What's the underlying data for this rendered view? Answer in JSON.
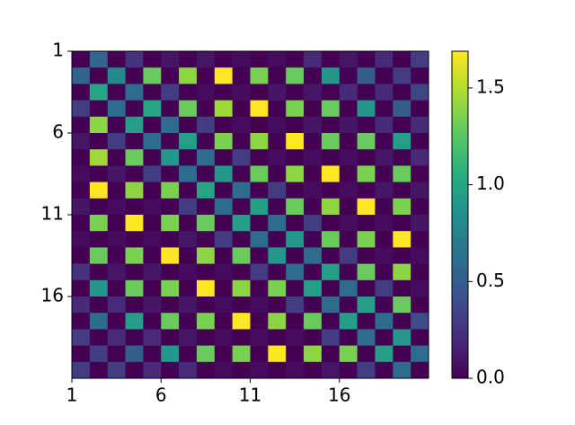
{
  "chart_data": {
    "type": "heatmap",
    "colormap": "viridis",
    "xlim": [
      1,
      21
    ],
    "ylim": [
      21,
      1
    ],
    "xticks": [
      1,
      6,
      11,
      16
    ],
    "yticks": [
      1,
      6,
      11,
      16
    ],
    "clim": [
      0,
      1.69
    ],
    "cticks": [
      {
        "value": 0,
        "label": "0.0"
      },
      {
        "value": 0.5,
        "label": "0.5"
      },
      {
        "value": 1,
        "label": "1.0"
      },
      {
        "value": 1.5,
        "label": "1.5"
      }
    ],
    "z": [
      [
        0,
        0.55,
        0,
        0.25,
        0,
        0.1,
        0,
        0.1,
        0,
        0.05,
        0,
        0.05,
        0,
        0.2,
        0,
        0.1,
        0,
        0.2,
        0,
        0.3
      ],
      [
        0.55,
        0,
        0.8,
        0,
        1.3,
        0,
        1.4,
        0,
        1.69,
        0,
        1.35,
        0,
        1.3,
        0,
        0.9,
        0,
        0.5,
        0,
        0.3,
        0
      ],
      [
        0,
        1.0,
        0,
        0.6,
        0,
        0.3,
        0,
        0.05,
        0,
        0.05,
        0,
        0.1,
        0,
        0.1,
        0,
        0.2,
        0,
        0.2,
        0,
        0.35
      ],
      [
        0.3,
        0,
        0.6,
        0,
        1.0,
        0,
        1.3,
        0,
        1.45,
        0,
        1.69,
        0,
        1.35,
        0,
        1.3,
        0,
        0.9,
        0,
        0.5,
        0
      ],
      [
        0,
        1.4,
        0,
        0.95,
        0,
        0.6,
        0,
        0.3,
        0,
        0.05,
        0,
        0.05,
        0,
        0.1,
        0,
        0.1,
        0,
        0.2,
        0,
        0.2
      ],
      [
        0.1,
        0,
        0.3,
        0,
        0.6,
        0,
        0.95,
        0,
        1.35,
        0,
        1.4,
        0,
        1.69,
        0,
        1.3,
        0,
        1.3,
        0,
        0.95,
        0
      ],
      [
        0,
        1.45,
        0,
        1.3,
        0,
        0.9,
        0,
        0.6,
        0,
        0.3,
        0,
        0.05,
        0,
        0.05,
        0,
        0.05,
        0,
        0.1,
        0,
        0.2
      ],
      [
        0.05,
        0,
        0.1,
        0,
        0.3,
        0,
        0.6,
        0,
        0.9,
        0,
        1.3,
        0,
        1.4,
        0,
        1.69,
        0,
        1.35,
        0,
        1.3,
        0
      ],
      [
        0,
        1.69,
        0,
        1.4,
        0,
        1.35,
        0,
        1.0,
        0,
        0.6,
        0,
        0.3,
        0,
        0.05,
        0,
        0.05,
        0,
        0.1,
        0,
        0.1
      ],
      [
        0.1,
        0,
        0.05,
        0,
        0.05,
        0,
        0.3,
        0,
        0.6,
        0,
        0.95,
        0,
        1.3,
        0,
        1.4,
        0,
        1.69,
        0,
        1.35,
        0
      ],
      [
        0,
        1.35,
        0,
        1.69,
        0,
        1.35,
        0,
        1.3,
        0,
        0.95,
        0,
        0.6,
        0,
        0.3,
        0,
        0.05,
        0,
        0.05,
        0,
        0.1
      ],
      [
        0.05,
        0,
        0.05,
        0,
        0.05,
        0,
        0.1,
        0,
        0.3,
        0,
        0.6,
        0,
        0.9,
        0,
        1.3,
        0,
        1.35,
        0,
        1.69,
        0
      ],
      [
        0,
        1.3,
        0,
        1.35,
        0,
        1.69,
        0,
        1.4,
        0,
        1.3,
        0,
        0.9,
        0,
        0.6,
        0,
        0.3,
        0,
        0.05,
        0,
        0.05
      ],
      [
        0.25,
        0,
        0.1,
        0,
        0.1,
        0,
        0.05,
        0,
        0.05,
        0,
        0.3,
        0,
        0.6,
        0,
        0.95,
        0,
        1.3,
        0,
        1.4,
        0
      ],
      [
        0,
        0.9,
        0,
        1.3,
        0,
        1.35,
        0,
        1.69,
        0,
        1.4,
        0,
        1.35,
        0,
        0.95,
        0,
        0.6,
        0,
        0.3,
        0,
        0.05
      ],
      [
        0.2,
        0,
        0.2,
        0,
        0.1,
        0,
        0.1,
        0,
        0.05,
        0,
        0.05,
        0,
        0.3,
        0,
        0.6,
        0,
        0.95,
        0,
        1.3,
        0
      ],
      [
        0,
        0.6,
        0,
        0.95,
        0,
        1.3,
        0,
        1.35,
        0,
        1.69,
        0,
        1.4,
        0,
        1.3,
        0,
        0.95,
        0,
        0.6,
        0,
        0.4
      ],
      [
        0.3,
        0,
        0.2,
        0,
        0.2,
        0,
        0.1,
        0,
        0.05,
        0,
        0.05,
        0,
        0.05,
        0,
        0.3,
        0,
        0.6,
        0,
        0.9,
        0
      ],
      [
        0,
        0.3,
        0,
        0.5,
        0,
        0.9,
        0,
        1.3,
        0,
        1.35,
        0,
        1.69,
        0,
        1.4,
        0,
        1.35,
        0,
        0.95,
        0,
        0.6
      ],
      [
        0.3,
        0,
        0.3,
        0,
        0.2,
        0,
        0.2,
        0,
        0.05,
        0,
        0.05,
        0,
        0.05,
        0,
        0.1,
        0,
        0.3,
        0,
        0.6,
        0
      ]
    ]
  }
}
